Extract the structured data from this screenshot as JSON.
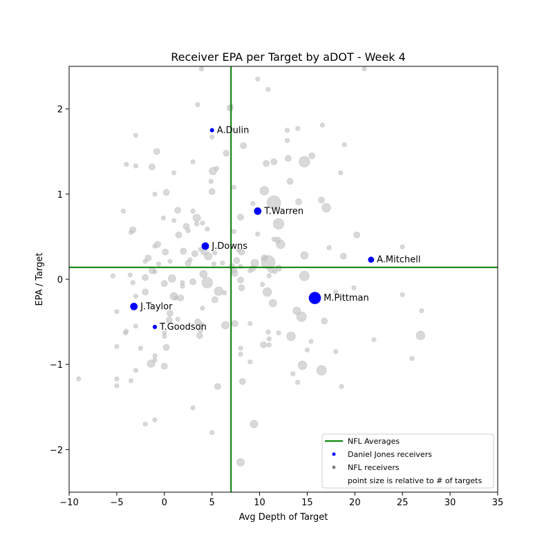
{
  "chart_data": {
    "type": "scatter",
    "title": "Receiver EPA per Target by aDOT - Week 4",
    "xlabel": "Avg Depth of Target",
    "ylabel": "EPA / Target",
    "xlim": [
      -10,
      35
    ],
    "ylim": [
      -2.5,
      2.5
    ],
    "xticks": [
      -10,
      -5,
      0,
      5,
      10,
      15,
      20,
      25,
      30,
      35
    ],
    "yticks": [
      -2,
      -1,
      0,
      1,
      2
    ],
    "grid": false,
    "legend_position": "lower-right",
    "averages": {
      "x": 7.0,
      "y": 0.14,
      "color": "#008000"
    },
    "legend": [
      {
        "label": "NFL Averages",
        "kind": "line",
        "color": "#008000"
      },
      {
        "label": "Daniel Jones receivers",
        "kind": "marker",
        "color": "#0000ff"
      },
      {
        "label": "NFL receivers",
        "kind": "marker",
        "color": "#808080"
      },
      {
        "label": "point size is relative to # of targets",
        "kind": "none",
        "color": ""
      }
    ],
    "highlight_color": "#0000ff",
    "background_color": "#c0c0c0",
    "highlight_series": [
      {
        "label": "A.Dulin",
        "x": 5.0,
        "y": 1.75,
        "targets": 1
      },
      {
        "label": "T.Warren",
        "x": 9.8,
        "y": 0.8,
        "targets": 3
      },
      {
        "label": "J.Downs",
        "x": 4.3,
        "y": 0.39,
        "targets": 3
      },
      {
        "label": "A.Mitchell",
        "x": 21.7,
        "y": 0.23,
        "targets": 2
      },
      {
        "label": "M.Pittman",
        "x": 15.8,
        "y": -0.22,
        "targets": 8
      },
      {
        "label": "J.Taylor",
        "x": -3.2,
        "y": -0.32,
        "targets": 3
      },
      {
        "label": "T.Goodson",
        "x": -1.0,
        "y": -0.56,
        "targets": 1
      }
    ],
    "background_series": [
      [
        3.9,
        2.47,
        1
      ],
      [
        21.0,
        2.47,
        1
      ],
      [
        9.8,
        2.35,
        1
      ],
      [
        10.9,
        2.23,
        1
      ],
      [
        3.5,
        2.05,
        1
      ],
      [
        6.9,
        2.01,
        2
      ],
      [
        7.0,
        2.03,
        1
      ],
      [
        16.6,
        1.81,
        1
      ],
      [
        12.9,
        1.75,
        1
      ],
      [
        14.0,
        1.77,
        1
      ],
      [
        -3.0,
        1.69,
        1
      ],
      [
        5.0,
        1.67,
        1
      ],
      [
        12.9,
        1.63,
        1
      ],
      [
        8.3,
        1.57,
        2
      ],
      [
        18.9,
        1.58,
        1
      ],
      [
        -0.8,
        1.5,
        2
      ],
      [
        6.5,
        1.48,
        2
      ],
      [
        13.0,
        1.42,
        2
      ],
      [
        14.7,
        1.38,
        6
      ],
      [
        15.5,
        1.45,
        2
      ],
      [
        10.7,
        1.36,
        2
      ],
      [
        11.5,
        1.38,
        2
      ],
      [
        -4.0,
        1.35,
        1
      ],
      [
        -3.0,
        1.33,
        1
      ],
      [
        -1.3,
        1.32,
        2
      ],
      [
        5.1,
        1.27,
        3
      ],
      [
        5.5,
        1.3,
        1
      ],
      [
        1.0,
        1.25,
        1
      ],
      [
        3.0,
        1.38,
        1
      ],
      [
        18.5,
        1.25,
        1
      ],
      [
        4.9,
        1.15,
        1
      ],
      [
        13.2,
        1.15,
        2
      ],
      [
        7.3,
        1.08,
        1
      ],
      [
        10.5,
        1.04,
        4
      ],
      [
        5.0,
        1.03,
        2
      ],
      [
        0.2,
        1.02,
        2
      ],
      [
        -1.0,
        1.0,
        1
      ],
      [
        11.5,
        0.9,
        10
      ],
      [
        9.3,
        0.89,
        1
      ],
      [
        14.1,
        0.91,
        2
      ],
      [
        16.5,
        0.93,
        2
      ],
      [
        17.0,
        0.84,
        4
      ],
      [
        -4.3,
        0.8,
        1
      ],
      [
        1.4,
        0.81,
        2
      ],
      [
        3.0,
        0.8,
        1
      ],
      [
        8.0,
        0.73,
        2
      ],
      [
        3.4,
        0.72,
        3
      ],
      [
        -0.1,
        0.72,
        1
      ],
      [
        1.0,
        0.69,
        1
      ],
      [
        12.0,
        0.65,
        6
      ],
      [
        2.3,
        0.62,
        2
      ],
      [
        3.4,
        0.65,
        1
      ],
      [
        4.0,
        0.66,
        1
      ],
      [
        -3.3,
        0.58,
        2
      ],
      [
        -3.5,
        0.55,
        1
      ],
      [
        7.3,
        0.56,
        1
      ],
      [
        2.5,
        0.57,
        1
      ],
      [
        1.5,
        0.52,
        2
      ],
      [
        4.5,
        0.59,
        1
      ],
      [
        9.8,
        0.53,
        1
      ],
      [
        11.5,
        0.47,
        1
      ],
      [
        11.9,
        0.46,
        2
      ],
      [
        12.2,
        0.41,
        4
      ],
      [
        20.2,
        0.52,
        2
      ],
      [
        -1.0,
        0.39,
        1
      ],
      [
        -0.7,
        0.41,
        2
      ],
      [
        0.1,
        0.32,
        2
      ],
      [
        2.0,
        0.33,
        2
      ],
      [
        3.2,
        0.3,
        2
      ],
      [
        3.8,
        0.35,
        1
      ],
      [
        4.2,
        0.32,
        2
      ],
      [
        4.6,
        0.27,
        3
      ],
      [
        5.3,
        0.31,
        1
      ],
      [
        7.8,
        0.34,
        1
      ],
      [
        8.1,
        0.32,
        2
      ],
      [
        17.3,
        0.37,
        1
      ],
      [
        14.7,
        0.28,
        3
      ],
      [
        18.8,
        0.27,
        2
      ],
      [
        25.0,
        0.38,
        1
      ],
      [
        -1.7,
        0.25,
        2
      ],
      [
        -1.3,
        0.1,
        2
      ],
      [
        -2.0,
        0.21,
        1
      ],
      [
        -0.6,
        0.18,
        1
      ],
      [
        0.6,
        0.21,
        1
      ],
      [
        2.5,
        0.19,
        2
      ],
      [
        2.7,
        0.23,
        1
      ],
      [
        5.2,
        0.18,
        1
      ],
      [
        6.1,
        0.19,
        1
      ],
      [
        7.1,
        0.15,
        2
      ],
      [
        7.6,
        0.22,
        2
      ],
      [
        7.3,
        0.11,
        2
      ],
      [
        8.0,
        0.15,
        1
      ],
      [
        9.3,
        0.13,
        2
      ],
      [
        9.5,
        0.19,
        3
      ],
      [
        10.5,
        0.25,
        2
      ],
      [
        10.9,
        0.2,
        10
      ],
      [
        11.2,
        0.11,
        2
      ],
      [
        11.6,
        0.09,
        1
      ],
      [
        12.0,
        0.13,
        2
      ],
      [
        -5.4,
        0.04,
        1
      ],
      [
        -3.6,
        0.05,
        1
      ],
      [
        -1.0,
        0.09,
        1
      ],
      [
        -2.0,
        0.02,
        2
      ],
      [
        0.8,
        0.01,
        3
      ],
      [
        4.1,
        0.06,
        3
      ],
      [
        4.5,
        -0.04,
        6
      ],
      [
        7.4,
        0.07,
        2
      ],
      [
        8.0,
        -0.01,
        2
      ],
      [
        9.0,
        0.1,
        1
      ],
      [
        11.0,
        0.04,
        1
      ],
      [
        14.7,
        0.04,
        5
      ],
      [
        -3.3,
        -0.04,
        1
      ],
      [
        0.0,
        -0.05,
        2
      ],
      [
        1.9,
        -0.04,
        1
      ],
      [
        3.0,
        -0.03,
        2
      ],
      [
        8.1,
        -0.1,
        2
      ],
      [
        10.3,
        -0.06,
        1
      ],
      [
        19.9,
        -0.1,
        1
      ],
      [
        -2.0,
        -0.15,
        2
      ],
      [
        1.9,
        -0.08,
        1
      ],
      [
        5.7,
        -0.14,
        4
      ],
      [
        6.3,
        -0.16,
        1
      ],
      [
        10.8,
        -0.15,
        4
      ],
      [
        18.0,
        -0.15,
        1
      ],
      [
        25.0,
        -0.18,
        1
      ],
      [
        -3.0,
        -0.2,
        1
      ],
      [
        1.0,
        -0.2,
        3
      ],
      [
        1.2,
        -0.22,
        1
      ],
      [
        1.7,
        -0.22,
        2
      ],
      [
        5.3,
        -0.24,
        2
      ],
      [
        11.4,
        -0.28,
        3
      ],
      [
        4.0,
        -0.34,
        1
      ],
      [
        13.9,
        -0.37,
        3
      ],
      [
        14.4,
        -0.44,
        5
      ],
      [
        16.8,
        -0.49,
        2
      ],
      [
        27.0,
        -0.37,
        1
      ],
      [
        -5.0,
        -0.38,
        1
      ],
      [
        -4.1,
        -0.63,
        1
      ],
      [
        -4.0,
        -0.61,
        1
      ],
      [
        -3.0,
        -0.55,
        1
      ],
      [
        0.6,
        -0.4,
        2
      ],
      [
        0.5,
        -0.48,
        2
      ],
      [
        1.4,
        -0.47,
        1
      ],
      [
        3.5,
        -0.5,
        2
      ],
      [
        3.9,
        -0.53,
        1
      ],
      [
        6.4,
        -0.54,
        3
      ],
      [
        7.4,
        -0.52,
        2
      ],
      [
        9.0,
        -0.52,
        1
      ],
      [
        3.8,
        -0.6,
        1
      ],
      [
        0.0,
        -0.63,
        1
      ],
      [
        0.0,
        -0.67,
        1
      ],
      [
        3.7,
        -0.66,
        2
      ],
      [
        10.9,
        -0.62,
        1
      ],
      [
        12.0,
        -0.63,
        1
      ],
      [
        13.3,
        -0.67,
        4
      ],
      [
        15.4,
        -0.73,
        1
      ],
      [
        22.0,
        -0.71,
        1
      ],
      [
        26.9,
        -0.66,
        4
      ],
      [
        -5.0,
        -0.79,
        1
      ],
      [
        -2.5,
        -0.81,
        1
      ],
      [
        0.2,
        -0.8,
        2
      ],
      [
        8.0,
        -0.81,
        1
      ],
      [
        10.4,
        -0.77,
        2
      ],
      [
        11.0,
        -0.7,
        1
      ],
      [
        11.0,
        -0.77,
        1
      ],
      [
        15.0,
        -0.83,
        1
      ],
      [
        18.0,
        -0.85,
        1
      ],
      [
        -1.0,
        -0.9,
        1
      ],
      [
        -1.0,
        -0.95,
        1
      ],
      [
        -1.4,
        -0.99,
        3
      ],
      [
        0.0,
        -1.02,
        2
      ],
      [
        8.0,
        -0.88,
        1
      ],
      [
        9.0,
        -0.97,
        1
      ],
      [
        14.5,
        -1.01,
        4
      ],
      [
        16.5,
        -1.07,
        5
      ],
      [
        26.0,
        -0.93,
        1
      ],
      [
        -3.0,
        -1.07,
        1
      ],
      [
        13.5,
        -1.11,
        1
      ],
      [
        -9.0,
        -1.17,
        1
      ],
      [
        -5.0,
        -1.17,
        1
      ],
      [
        -5.0,
        -1.25,
        1
      ],
      [
        -3.5,
        -1.19,
        1
      ],
      [
        8.2,
        -1.2,
        2
      ],
      [
        14.0,
        -1.21,
        1
      ],
      [
        5.6,
        -1.26,
        2
      ],
      [
        18.6,
        -1.26,
        1
      ],
      [
        3.0,
        -1.51,
        1
      ],
      [
        -1.0,
        -1.65,
        1
      ],
      [
        -2.0,
        -1.7,
        1
      ],
      [
        9.4,
        -1.7,
        3
      ],
      [
        5.0,
        -1.8,
        1
      ],
      [
        8.0,
        -2.15,
        3
      ]
    ]
  }
}
